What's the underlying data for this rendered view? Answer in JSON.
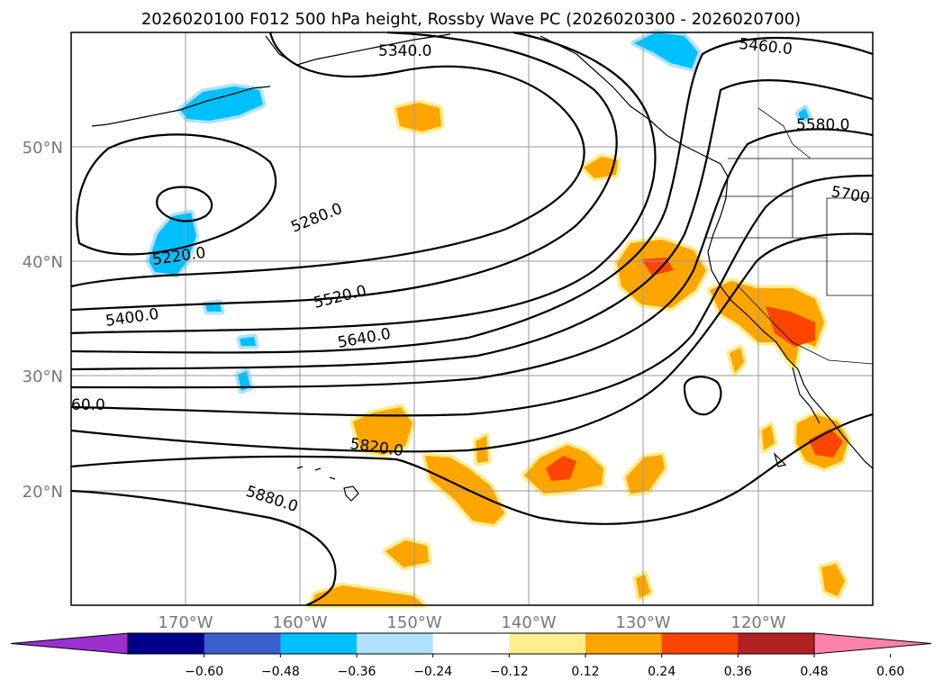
{
  "title": "2026020100 F012 500 hPa height, Rossby Wave PC (2026020300 - 2026020700)",
  "lon_ticks": [
    "170°W",
    "160°W",
    "150°W",
    "140°W",
    "130°W",
    "120°W"
  ],
  "lat_ticks": [
    "50°N",
    "40°N",
    "30°N",
    "20°N"
  ],
  "contour_labels": [
    {
      "text": "5340.0",
      "line": 0
    },
    {
      "text": "5460.0",
      "line": 1
    },
    {
      "text": "5580.0",
      "line": 2
    },
    {
      "text": "5700",
      "line": 3
    },
    {
      "text": "5280.0",
      "line": 4
    },
    {
      "text": "5220.0",
      "line": 5
    },
    {
      "text": "5400.0",
      "line": 6
    },
    {
      "text": "5520.0",
      "line": 7
    },
    {
      "text": "5640.0",
      "line": 8
    },
    {
      "text": "5820.0",
      "line": 9
    },
    {
      "text": "5880.0",
      "line": 10
    },
    {
      "text": "60.0",
      "line": 11
    }
  ],
  "colorbar": {
    "ticks": [
      "−0.60",
      "−0.48",
      "−0.36",
      "−0.24",
      "−0.12",
      "0.12",
      "0.24",
      "0.36",
      "0.48",
      "0.60"
    ],
    "colors": [
      "#9b30d0",
      "#00008b",
      "#3a5fcd",
      "#00bfff",
      "#b0e2ff",
      "#ffffff",
      "#ffec8b",
      "#ffa500",
      "#ff4500",
      "#b22222",
      "#ff82ab"
    ]
  },
  "shading_colors": {
    "pos_light": "#ffec8b",
    "pos_mid": "#ffa500",
    "pos_strong": "#ff4500",
    "neg_light": "#b0e2ff",
    "neg_mid": "#00bfff"
  }
}
